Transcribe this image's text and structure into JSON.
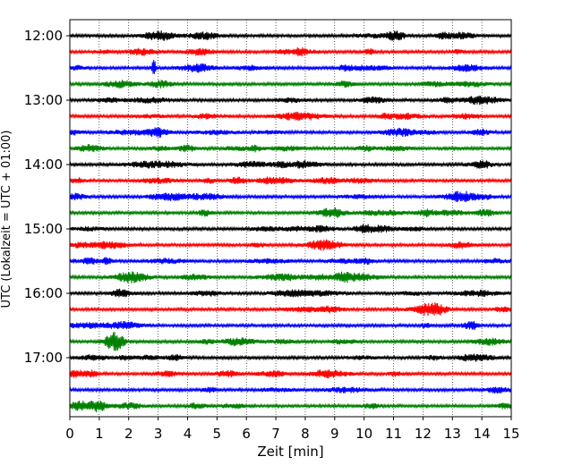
{
  "chart_data": {
    "type": "line",
    "title": "",
    "xlabel": "Zeit  [min]",
    "ylabel": "UTC (Lokalzeit = UTC + 01:00)",
    "xlim": [
      0,
      15
    ],
    "x_ticks": [
      0,
      1,
      2,
      3,
      4,
      5,
      6,
      7,
      8,
      9,
      10,
      11,
      12,
      13,
      14,
      15
    ],
    "x_tick_labels": [
      "0",
      "1",
      "2",
      "3",
      "4",
      "5",
      "6",
      "7",
      "8",
      "9",
      "10",
      "11",
      "12",
      "13",
      "14",
      "15"
    ],
    "y_ticks": [
      "12:00",
      "13:00",
      "14:00",
      "15:00",
      "16:00",
      "17:00"
    ],
    "grid": {
      "x": true,
      "y": false,
      "style": "dotted"
    },
    "trace_minutes": 15,
    "trace_colors": [
      "#000000",
      "#ff0000",
      "#0000ff",
      "#008000"
    ],
    "series": [
      {
        "start": "12:00",
        "color": "#000000"
      },
      {
        "start": "12:15",
        "color": "#ff0000"
      },
      {
        "start": "12:30",
        "color": "#0000ff",
        "events": [
          {
            "x": 2.85,
            "amplitude": 0.85
          }
        ]
      },
      {
        "start": "12:45",
        "color": "#008000"
      },
      {
        "start": "13:00",
        "color": "#000000"
      },
      {
        "start": "13:15",
        "color": "#ff0000"
      },
      {
        "start": "13:30",
        "color": "#0000ff"
      },
      {
        "start": "13:45",
        "color": "#008000"
      },
      {
        "start": "14:00",
        "color": "#000000"
      },
      {
        "start": "14:15",
        "color": "#ff0000"
      },
      {
        "start": "14:30",
        "color": "#0000ff"
      },
      {
        "start": "14:45",
        "color": "#008000"
      },
      {
        "start": "15:00",
        "color": "#000000"
      },
      {
        "start": "15:15",
        "color": "#ff0000"
      },
      {
        "start": "15:30",
        "color": "#0000ff"
      },
      {
        "start": "15:45",
        "color": "#008000"
      },
      {
        "start": "16:00",
        "color": "#000000"
      },
      {
        "start": "16:15",
        "color": "#ff0000"
      },
      {
        "start": "16:30",
        "color": "#0000ff"
      },
      {
        "start": "16:45",
        "color": "#008000"
      },
      {
        "start": "17:00",
        "color": "#000000"
      },
      {
        "start": "17:15",
        "color": "#ff0000"
      },
      {
        "start": "17:30",
        "color": "#0000ff"
      },
      {
        "start": "17:45",
        "color": "#008000"
      }
    ]
  }
}
